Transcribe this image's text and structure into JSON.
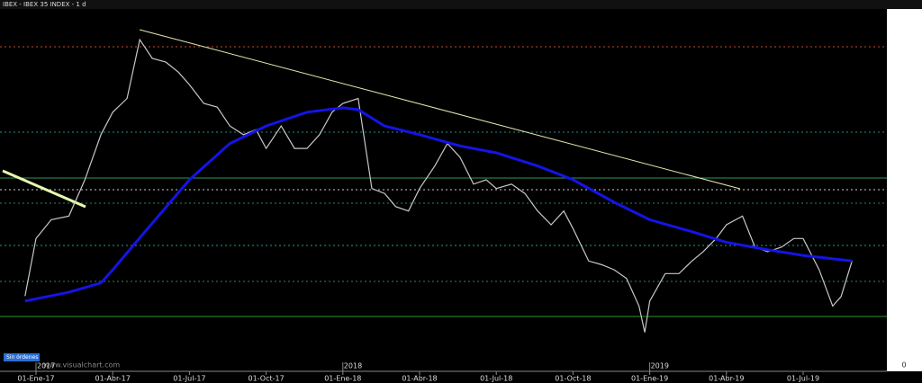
{
  "chart_data": {
    "type": "line",
    "title": "IBEX - IBEX 35 INDEX - 1 d",
    "status": "Sin órdenes",
    "watermark": "www.visualchart.com",
    "right_axis_label": "0",
    "years": [
      {
        "value": "2017-01-02",
        "label": "2017"
      },
      {
        "value": "2018-01-02",
        "label": "2018"
      },
      {
        "value": "2019-01-02",
        "label": "2019"
      }
    ],
    "xticks": [
      {
        "value": "2017-01-02",
        "label": "01-Ene-17"
      },
      {
        "value": "2017-04-03",
        "label": "01-Abr-17"
      },
      {
        "value": "2017-07-03",
        "label": "01-Jul-17"
      },
      {
        "value": "2017-10-02",
        "label": "01-Oct-17"
      },
      {
        "value": "2018-01-02",
        "label": "01-Ene-18"
      },
      {
        "value": "2018-04-02",
        "label": "01-Abr-18"
      },
      {
        "value": "2018-07-02",
        "label": "01-Jul-18"
      },
      {
        "value": "2018-10-01",
        "label": "01-Oct-18"
      },
      {
        "value": "2019-01-02",
        "label": "01-Ene-19"
      },
      {
        "value": "2019-04-01",
        "label": "01-Abr-19"
      },
      {
        "value": "2019-07-01",
        "label": "01-Jul-19"
      }
    ],
    "ylim": [
      8420,
      11295
    ],
    "series": [
      {
        "color": "#c8c8c8",
        "x": [
          "2016-12-20",
          "2017-01-02",
          "2017-01-20",
          "2017-02-10",
          "2017-03-01",
          "2017-03-20",
          "2017-04-03",
          "2017-04-20",
          "2017-05-05",
          "2017-05-20",
          "2017-06-05",
          "2017-06-20",
          "2017-07-03",
          "2017-07-20",
          "2017-08-05",
          "2017-08-20",
          "2017-09-05",
          "2017-09-20",
          "2017-10-02",
          "2017-10-20",
          "2017-11-05",
          "2017-11-20",
          "2017-12-05",
          "2017-12-20",
          "2018-01-02",
          "2018-01-20",
          "2018-02-05",
          "2018-02-20",
          "2018-03-05",
          "2018-03-20",
          "2018-04-02",
          "2018-04-20",
          "2018-05-05",
          "2018-05-20",
          "2018-06-05",
          "2018-06-20",
          "2018-07-02",
          "2018-07-20",
          "2018-08-05",
          "2018-08-20",
          "2018-09-05",
          "2018-09-20",
          "2018-10-01",
          "2018-10-20",
          "2018-11-05",
          "2018-11-20",
          "2018-12-05",
          "2018-12-20",
          "2018-12-27",
          "2019-01-02",
          "2019-01-20",
          "2019-02-05",
          "2019-02-20",
          "2019-03-05",
          "2019-03-20",
          "2019-04-01",
          "2019-04-20",
          "2019-05-05",
          "2019-05-20",
          "2019-06-05",
          "2019-06-20",
          "2019-07-01",
          "2019-07-20",
          "2019-08-05",
          "2019-08-15",
          "2019-08-28"
        ],
        "values": [
          9000,
          9460,
          9610,
          9640,
          9930,
          10290,
          10470,
          10580,
          11050,
          10900,
          10870,
          10790,
          10690,
          10540,
          10510,
          10360,
          10290,
          10330,
          10180,
          10360,
          10180,
          10180,
          10290,
          10470,
          10540,
          10580,
          9860,
          9820,
          9715,
          9680,
          9860,
          10040,
          10220,
          10110,
          9895,
          9930,
          9860,
          9895,
          9820,
          9680,
          9570,
          9680,
          9540,
          9280,
          9250,
          9210,
          9140,
          8920,
          8710,
          8960,
          9180,
          9180,
          9280,
          9355,
          9460,
          9570,
          9640,
          9390,
          9355,
          9390,
          9460,
          9460,
          9210,
          8920,
          8996,
          9280
        ]
      },
      {
        "color": "#1414e6",
        "x": [
          "2016-12-20",
          "2017-02-10",
          "2017-03-20",
          "2017-04-03",
          "2017-05-05",
          "2017-07-03",
          "2017-08-20",
          "2017-10-02",
          "2017-11-20",
          "2018-01-02",
          "2018-01-20",
          "2018-02-20",
          "2018-04-02",
          "2018-05-20",
          "2018-07-02",
          "2018-08-20",
          "2018-10-01",
          "2018-11-20",
          "2019-01-02",
          "2019-02-20",
          "2019-04-01",
          "2019-05-20",
          "2019-07-01",
          "2019-08-28"
        ],
        "values": [
          8960,
          9030,
          9105,
          9210,
          9465,
          9930,
          10220,
          10360,
          10470,
          10505,
          10490,
          10360,
          10290,
          10200,
          10145,
          10040,
          9930,
          9750,
          9610,
          9515,
          9430,
          9370,
          9325,
          9280
        ]
      }
    ]
  }
}
